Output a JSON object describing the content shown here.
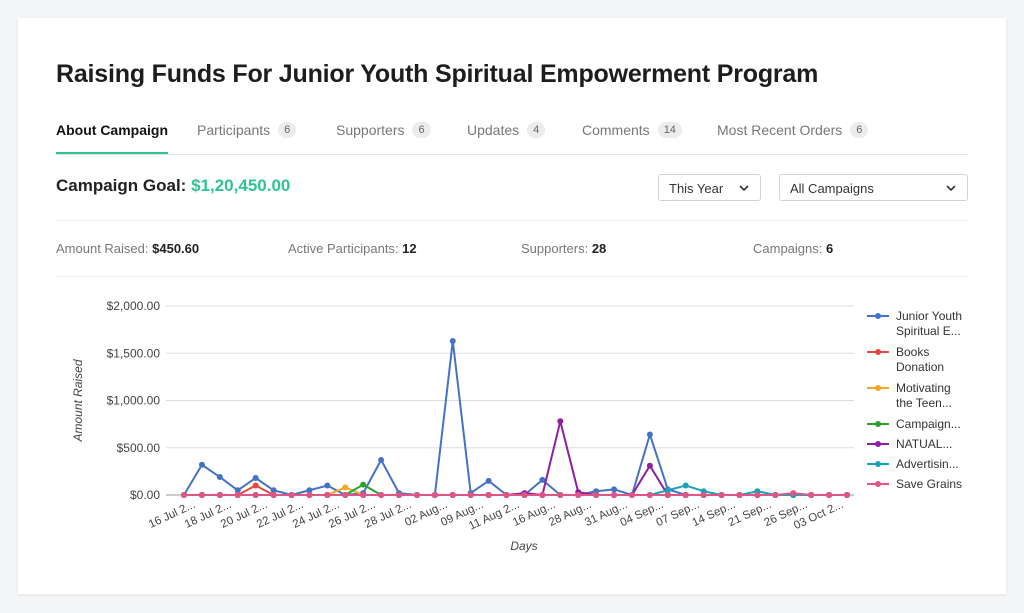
{
  "title": "Raising Funds For Junior Youth Spiritual Empowerment Program",
  "tabs": [
    {
      "label": "About Campaign",
      "count": ""
    },
    {
      "label": "Participants",
      "count": "6"
    },
    {
      "label": "Supporters",
      "count": "6"
    },
    {
      "label": "Updates",
      "count": "4"
    },
    {
      "label": "Comments",
      "count": "14"
    },
    {
      "label": "Most Recent Orders",
      "count": "6"
    }
  ],
  "goal": {
    "label": "Campaign Goal:",
    "amount": "$1,20,450.00"
  },
  "filters": {
    "period": "This Year",
    "campaigns": "All Campaigns"
  },
  "stats": [
    {
      "label": "Amount Raised:",
      "value": "$450.60"
    },
    {
      "label": "Active Participants:",
      "value": "12"
    },
    {
      "label": "Supporters:",
      "value": "28"
    },
    {
      "label": "Campaigns:",
      "value": "6"
    }
  ],
  "colors": {
    "accent": "#2fc48f"
  },
  "icons": {
    "dropdown": "chevron-down-icon"
  },
  "chart_data": {
    "type": "line",
    "xlabel": "Days",
    "ylabel": "Amount Raised",
    "ylim": [
      0,
      2000
    ],
    "yticks": [
      "$0.00",
      "$500.00",
      "$1,000.00",
      "$1,500.00",
      "$2,000.00"
    ],
    "xticks": [
      "16 Jul 2...",
      "18 Jul 2...",
      "20 Jul 2...",
      "22 Jul 2...",
      "24 Jul 2...",
      "26 Jul 2...",
      "28 Jul 2...",
      "02 Aug...",
      "09 Aug...",
      "11 Aug 2...",
      "16 Aug...",
      "28 Aug...",
      "31 Aug...",
      "04 Sep...",
      "07 Sep...",
      "14 Sep...",
      "21 Sep...",
      "26 Sep...",
      "03 Oct 2..."
    ],
    "legend_position": "right",
    "grid": true,
    "series": [
      {
        "name": "Junior Youth Spiritual E...",
        "color": "#4472c4",
        "values": [
          0,
          320,
          190,
          50,
          180,
          50,
          0,
          50,
          100,
          0,
          20,
          370,
          20,
          0,
          0,
          1630,
          20,
          150,
          0,
          0,
          160,
          0,
          0,
          40,
          60,
          0,
          640,
          60,
          0,
          0,
          0,
          0,
          0,
          0,
          0,
          0,
          0,
          0
        ]
      },
      {
        "name": "Books Donation",
        "color": "#e04a3a",
        "values": [
          0,
          0,
          0,
          0,
          100,
          0,
          0,
          0,
          0,
          0,
          0,
          0,
          0,
          0,
          0,
          0,
          0,
          0,
          0,
          0,
          0,
          0,
          0,
          0,
          0,
          0,
          0,
          0,
          0,
          0,
          0,
          0,
          0,
          0,
          0,
          0,
          0,
          0
        ]
      },
      {
        "name": "Motivating the Teen...",
        "color": "#f5a623",
        "values": [
          0,
          0,
          0,
          0,
          0,
          0,
          0,
          0,
          0,
          80,
          0,
          0,
          0,
          0,
          0,
          0,
          0,
          0,
          0,
          0,
          0,
          0,
          0,
          0,
          0,
          0,
          0,
          0,
          0,
          0,
          0,
          0,
          0,
          0,
          0,
          0,
          0,
          0
        ]
      },
      {
        "name": "Campaign...",
        "color": "#2ca02c",
        "values": [
          0,
          0,
          0,
          0,
          0,
          0,
          0,
          0,
          0,
          0,
          110,
          0,
          0,
          0,
          0,
          0,
          0,
          0,
          0,
          0,
          0,
          0,
          0,
          0,
          0,
          0,
          0,
          0,
          0,
          0,
          0,
          0,
          0,
          0,
          0,
          0,
          0,
          0
        ]
      },
      {
        "name": "NATUAL...",
        "color": "#8e1fa0",
        "values": [
          0,
          0,
          0,
          0,
          0,
          0,
          0,
          0,
          0,
          0,
          0,
          0,
          0,
          0,
          0,
          0,
          0,
          0,
          0,
          20,
          0,
          780,
          30,
          0,
          0,
          0,
          310,
          0,
          0,
          0,
          0,
          0,
          0,
          0,
          0,
          0,
          0,
          0
        ]
      },
      {
        "name": "Advertisin...",
        "color": "#17a2b8",
        "values": [
          0,
          0,
          0,
          0,
          0,
          0,
          0,
          0,
          0,
          0,
          0,
          0,
          0,
          0,
          0,
          0,
          0,
          0,
          0,
          0,
          0,
          0,
          0,
          0,
          0,
          0,
          0,
          50,
          100,
          40,
          0,
          0,
          40,
          0,
          0,
          0,
          0,
          0
        ]
      },
      {
        "name": "Save Grains",
        "color": "#e05585",
        "values": [
          0,
          0,
          0,
          0,
          0,
          0,
          0,
          0,
          0,
          0,
          0,
          0,
          0,
          0,
          0,
          0,
          0,
          0,
          0,
          0,
          0,
          0,
          0,
          0,
          0,
          0,
          0,
          0,
          0,
          0,
          0,
          0,
          0,
          0,
          20,
          0,
          0,
          0
        ]
      }
    ]
  }
}
